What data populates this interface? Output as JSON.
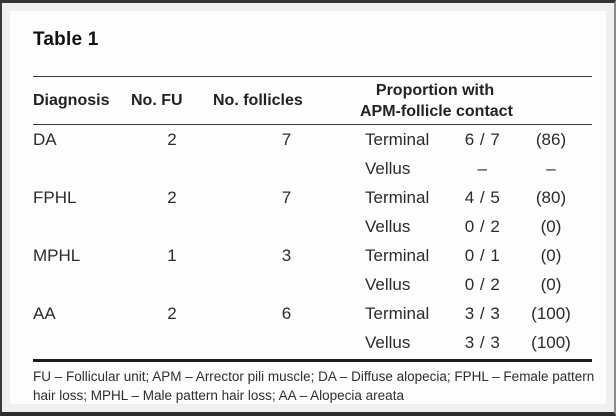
{
  "title": "Table 1",
  "table": {
    "columns": {
      "diagnosis": "Diagnosis",
      "no_fu": "No. FU",
      "no_follicles": "No. follicles",
      "proportion_line1": "Proportion with",
      "proportion_line2": "APM-follicle contact"
    },
    "rows": [
      {
        "diagnosis": "DA",
        "no_fu": "2",
        "no_follicles": "7",
        "hair_type": "Terminal",
        "fraction": "6 / 7",
        "percent": "(86)"
      },
      {
        "diagnosis": "",
        "no_fu": "",
        "no_follicles": "",
        "hair_type": "Vellus",
        "fraction": "–",
        "percent": "–"
      },
      {
        "diagnosis": "FPHL",
        "no_fu": "2",
        "no_follicles": "7",
        "hair_type": "Terminal",
        "fraction": "4 / 5",
        "percent": "(80)"
      },
      {
        "diagnosis": "",
        "no_fu": "",
        "no_follicles": "",
        "hair_type": "Vellus",
        "fraction": "0 / 2",
        "percent": "(0)"
      },
      {
        "diagnosis": "MPHL",
        "no_fu": "1",
        "no_follicles": "3",
        "hair_type": "Terminal",
        "fraction": "0 / 1",
        "percent": "(0)"
      },
      {
        "diagnosis": "",
        "no_fu": "",
        "no_follicles": "",
        "hair_type": "Vellus",
        "fraction": "0 / 2",
        "percent": "(0)"
      },
      {
        "diagnosis": "AA",
        "no_fu": "2",
        "no_follicles": "6",
        "hair_type": "Terminal",
        "fraction": "3 / 3",
        "percent": "(100)"
      },
      {
        "diagnosis": "",
        "no_fu": "",
        "no_follicles": "",
        "hair_type": "Vellus",
        "fraction": "3 / 3",
        "percent": "(100)"
      }
    ]
  },
  "footnote": "FU – Follicular unit; APM – Arrector pili muscle; DA – Diffuse alopecia; FPHL – Female pattern hair loss; MPHL – Male pattern hair loss; AA – Alopecia areata",
  "colors": {
    "frame": "#333333",
    "card_background": "#fdfdfd",
    "text": "#2b2b2b",
    "rule": "#3a3a3a"
  }
}
